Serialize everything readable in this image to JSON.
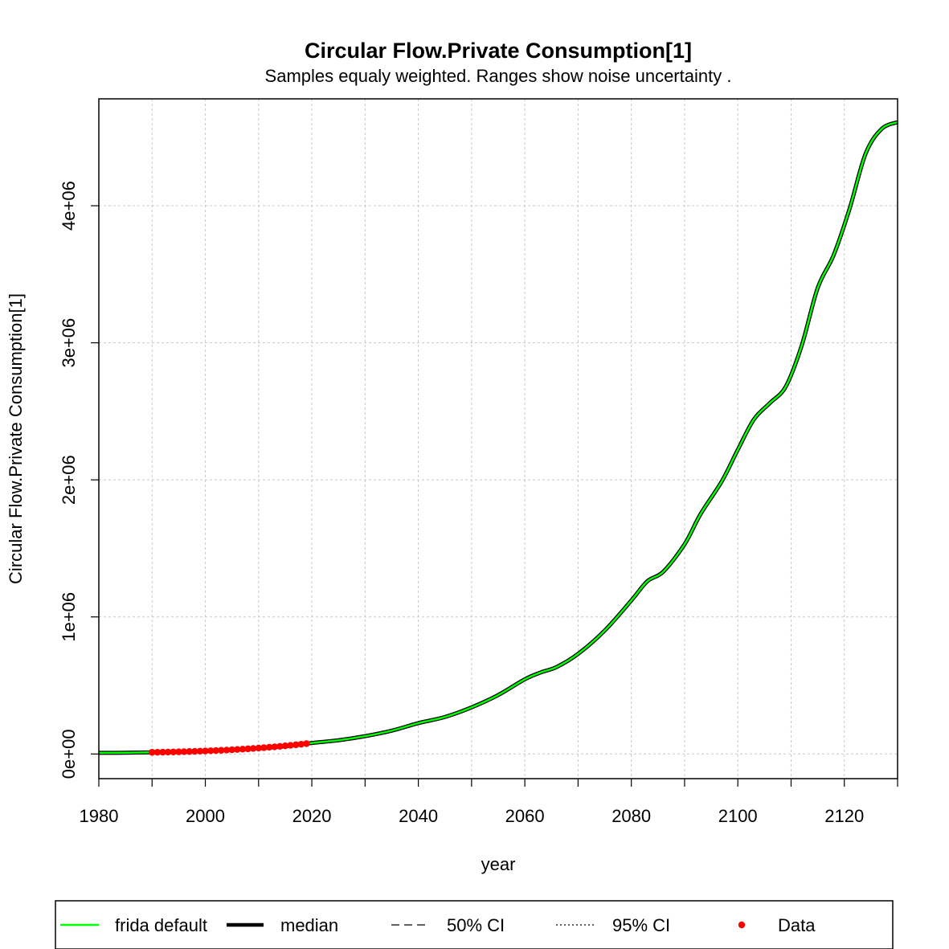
{
  "chart_data": {
    "type": "line",
    "title": "Circular Flow.Private Consumption[1]",
    "subtitle": "Samples equaly weighted. Ranges show  noise uncertainty .",
    "xlabel": "year",
    "ylabel": "Circular Flow.Private Consumption[1]",
    "xlim": [
      1980,
      2130
    ],
    "ylim": [
      -180000,
      4780000
    ],
    "x_ticks": [
      1980,
      2000,
      2020,
      2040,
      2060,
      2080,
      2100,
      2120
    ],
    "x_tick_labels": [
      "1980",
      "2000",
      "2020",
      "2040",
      "2060",
      "2080",
      "2100",
      "2120"
    ],
    "x_minor_ticks": [
      1990,
      2010,
      2030,
      2050,
      2070,
      2090,
      2110,
      2130
    ],
    "y_ticks": [
      0,
      1000000,
      2000000,
      3000000,
      4000000
    ],
    "y_tick_labels": [
      "0e+00",
      "1e+06",
      "2e+06",
      "3e+06",
      "4e+06"
    ],
    "grid": true,
    "legend_position": "bottom",
    "legend": [
      {
        "label": "frida default",
        "style": "solid-line",
        "color": "#00ff00"
      },
      {
        "label": "median",
        "style": "thick-line",
        "color": "#000000"
      },
      {
        "label": "50% CI",
        "style": "dashed-line",
        "color": "#000000"
      },
      {
        "label": "95% CI",
        "style": "dotted-line",
        "color": "#000000"
      },
      {
        "label": "Data",
        "style": "point",
        "color": "#ff0000"
      }
    ],
    "series": [
      {
        "name": "frida default",
        "color": "#00ff00",
        "x": [
          1980,
          1985,
          1990,
          1995,
          2000,
          2005,
          2010,
          2015,
          2020,
          2025,
          2030,
          2035,
          2040,
          2045,
          2050,
          2055,
          2060,
          2063,
          2066,
          2070,
          2075,
          2080,
          2083,
          2086,
          2090,
          2093,
          2097,
          2100,
          2103,
          2106,
          2109,
          2112,
          2115,
          2118,
          2121,
          2124,
          2127,
          2130
        ],
        "y": [
          8000,
          9000,
          12000,
          16000,
          22000,
          31000,
          42000,
          56000,
          80000,
          100000,
          130000,
          170000,
          225000,
          270000,
          340000,
          430000,
          545000,
          595000,
          635000,
          730000,
          900000,
          1120000,
          1260000,
          1330000,
          1530000,
          1750000,
          1990000,
          2220000,
          2440000,
          2560000,
          2680000,
          2980000,
          3400000,
          3640000,
          3980000,
          4380000,
          4560000,
          4610000
        ]
      }
    ],
    "data_points": {
      "name": "Data",
      "color": "#ff0000",
      "x": [
        1990,
        1991,
        1992,
        1993,
        1994,
        1995,
        1996,
        1997,
        1998,
        1999,
        2000,
        2001,
        2002,
        2003,
        2004,
        2005,
        2006,
        2007,
        2008,
        2009,
        2010,
        2011,
        2012,
        2013,
        2014,
        2015,
        2016,
        2017,
        2018,
        2019
      ],
      "y": [
        12000,
        12600,
        13300,
        14000,
        14800,
        15700,
        16700,
        17800,
        19000,
        20300,
        21700,
        23200,
        24900,
        26700,
        28600,
        30700,
        32900,
        35200,
        37700,
        40300,
        43000,
        45900,
        49000,
        52200,
        55600,
        59200,
        63000,
        67000,
        71200,
        75600
      ]
    }
  }
}
